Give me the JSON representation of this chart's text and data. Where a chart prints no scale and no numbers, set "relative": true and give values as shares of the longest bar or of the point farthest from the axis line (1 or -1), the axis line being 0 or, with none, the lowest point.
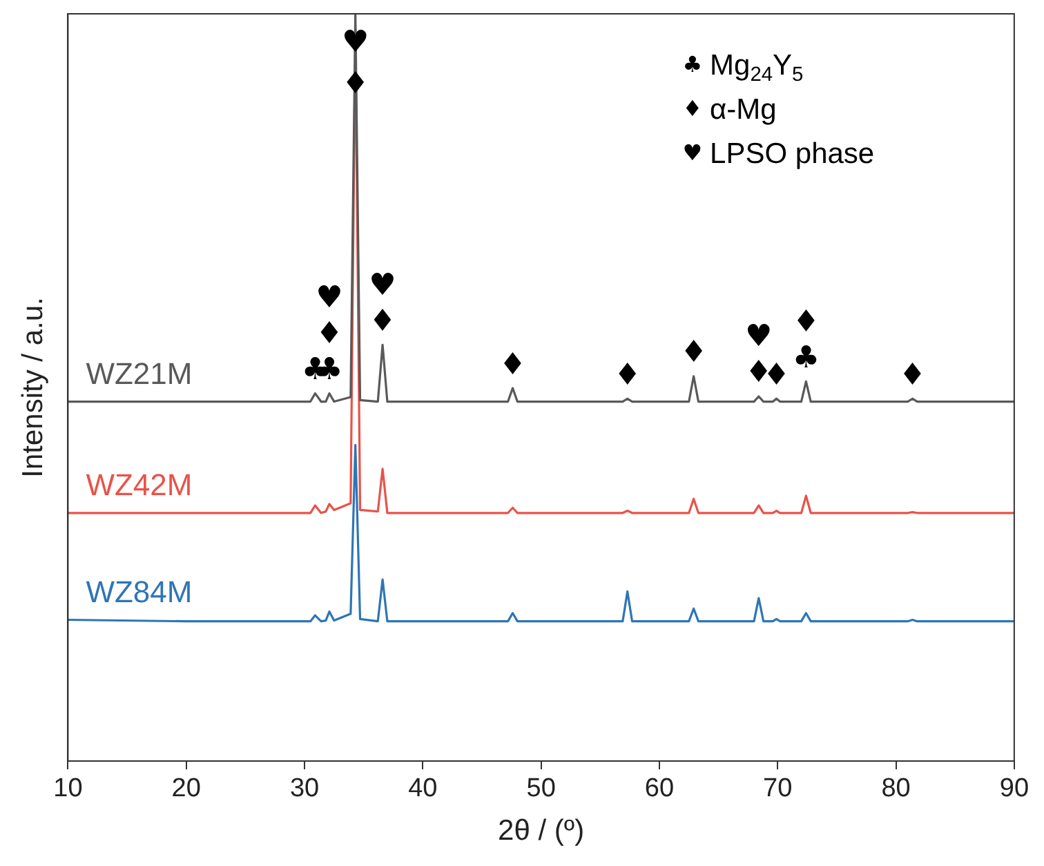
{
  "chart_data": {
    "type": "line",
    "relative": true,
    "xlabel": "2θ / (º)",
    "ylabel": "Intensity / a.u.",
    "xlim": [
      10,
      90
    ],
    "xticks": [
      10,
      20,
      30,
      40,
      50,
      60,
      70,
      80,
      90
    ],
    "grid": false,
    "legend": false,
    "marker": "none",
    "line_style": "solid",
    "x": [
      10,
      20,
      30.5,
      30.9,
      31.4,
      31.8,
      32.1,
      32.5,
      33.9,
      34.3,
      34.7,
      36.2,
      36.6,
      37.0,
      47.2,
      47.6,
      48.0,
      56.9,
      57.3,
      57.7,
      62.5,
      62.9,
      63.3,
      68.0,
      68.4,
      68.8,
      69.6,
      69.9,
      70.2,
      72.0,
      72.4,
      72.8,
      81.0,
      81.4,
      81.8,
      90
    ],
    "series": [
      {
        "name": "WZ21M",
        "color": "#595959",
        "values": [
          0.481,
          0.481,
          0.481,
          0.492,
          0.481,
          0.481,
          0.492,
          0.481,
          0.487,
          1.0,
          0.483,
          0.481,
          0.557,
          0.481,
          0.481,
          0.499,
          0.481,
          0.481,
          0.485,
          0.481,
          0.481,
          0.515,
          0.481,
          0.481,
          0.488,
          0.481,
          0.481,
          0.485,
          0.481,
          0.481,
          0.508,
          0.481,
          0.481,
          0.485,
          0.481,
          0.481
        ]
      },
      {
        "name": "WZ42M",
        "color": "#e8534a",
        "values": [
          0.332,
          0.332,
          0.332,
          0.342,
          0.332,
          0.334,
          0.344,
          0.336,
          0.345,
          0.98,
          0.336,
          0.334,
          0.391,
          0.332,
          0.332,
          0.339,
          0.332,
          0.332,
          0.335,
          0.332,
          0.332,
          0.351,
          0.332,
          0.332,
          0.342,
          0.332,
          0.332,
          0.335,
          0.332,
          0.332,
          0.355,
          0.332,
          0.332,
          0.333,
          0.332,
          0.332
        ]
      },
      {
        "name": "WZ84M",
        "color": "#2e75b6",
        "values": [
          0.189,
          0.187,
          0.187,
          0.195,
          0.187,
          0.188,
          0.2,
          0.188,
          0.197,
          0.423,
          0.19,
          0.187,
          0.243,
          0.187,
          0.187,
          0.198,
          0.187,
          0.187,
          0.227,
          0.187,
          0.187,
          0.204,
          0.187,
          0.187,
          0.218,
          0.187,
          0.187,
          0.19,
          0.187,
          0.187,
          0.198,
          0.187,
          0.187,
          0.189,
          0.187,
          0.187
        ]
      }
    ],
    "annotations": [
      {
        "text": "♣",
        "x": 30.9,
        "y": 0.492
      },
      {
        "text": "♣",
        "x": 32.1,
        "y": 0.492
      },
      {
        "text": "♦",
        "x": 32.1,
        "y": 0.492
      },
      {
        "text": "♥",
        "x": 32.1,
        "y": 0.492
      },
      {
        "text": "♦",
        "x": 34.3,
        "y": 1.0
      },
      {
        "text": "♥",
        "x": 34.3,
        "y": 1.0
      },
      {
        "text": "♦",
        "x": 36.6,
        "y": 0.557
      },
      {
        "text": "♥",
        "x": 36.6,
        "y": 0.557
      },
      {
        "text": "♦",
        "x": 47.6,
        "y": 0.499
      },
      {
        "text": "♦",
        "x": 57.3,
        "y": 0.485
      },
      {
        "text": "♦",
        "x": 62.9,
        "y": 0.515
      },
      {
        "text": "♦",
        "x": 68.4,
        "y": 0.488
      },
      {
        "text": "♥",
        "x": 68.4,
        "y": 0.488
      },
      {
        "text": "♦",
        "x": 69.9,
        "y": 0.485
      },
      {
        "text": "♣",
        "x": 72.4,
        "y": 0.508
      },
      {
        "text": "♦",
        "x": 72.4,
        "y": 0.508
      },
      {
        "text": "♦",
        "x": 81.4,
        "y": 0.485
      },
      "♣ Mg$_{24}$Y$_{5}$",
      "♦ α-Mg",
      "♥ LPSO phase"
    ]
  }
}
